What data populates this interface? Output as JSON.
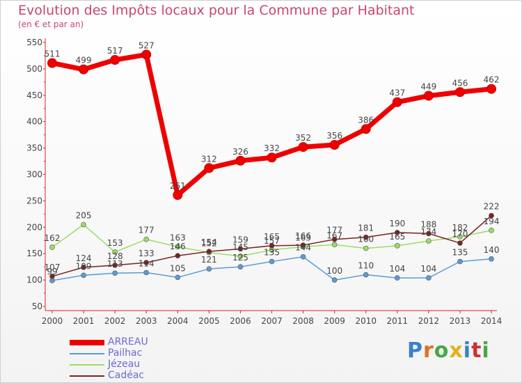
{
  "header": {
    "title": "Evolution des Impôts locaux pour la Commune par Habitant",
    "subtitle": "(en € et par an)"
  },
  "logo": {
    "text": "Proxiti"
  },
  "chart_data": {
    "type": "line",
    "title": "Evolution des Impôts locaux pour la Commune par Habitant",
    "subtitle": "(en € et par an)",
    "categories": [
      "2000",
      "2001",
      "2002",
      "2003",
      "2004",
      "2005",
      "2006",
      "2007",
      "2008",
      "2009",
      "2010",
      "2011",
      "2012",
      "2013",
      "2014"
    ],
    "ylim": [
      50,
      550
    ],
    "yticks": [
      50,
      100,
      150,
      200,
      250,
      300,
      350,
      400,
      450,
      500,
      550
    ],
    "legend_position": "bottom-left",
    "series": [
      {
        "name": "ARREAU",
        "color": "#ee0000",
        "values": [
          511,
          499,
          517,
          527,
          261,
          312,
          326,
          332,
          352,
          356,
          386,
          437,
          449,
          456,
          462
        ],
        "labels": [
          "511",
          "499",
          "517",
          "527",
          "261",
          "312",
          "326",
          "332",
          "352",
          "356",
          "386",
          "437",
          "449",
          "456",
          "462"
        ]
      },
      {
        "name": "Pailhac",
        "color": "#5b9bd5",
        "values": [
          99,
          109,
          113,
          114,
          105,
          121,
          125,
          135,
          144,
          100,
          110,
          104,
          104,
          135,
          140
        ],
        "labels": [
          "99",
          "109",
          "113",
          "114",
          "105",
          "121",
          "125",
          "135",
          "144",
          "100",
          "110",
          "104",
          "104",
          "135",
          "140"
        ]
      },
      {
        "name": "Jézeau",
        "color": "#99dd66",
        "values": [
          162,
          205,
          153,
          177,
          163,
          152,
          145,
          157,
          163,
          167,
          160,
          165,
          174,
          182,
          194
        ],
        "labels": [
          "162",
          "205",
          "153",
          "177",
          "163",
          "152",
          "145",
          "157",
          "163",
          "167",
          "160",
          "165",
          "174",
          "182",
          "194"
        ]
      },
      {
        "name": "Cadéac",
        "color": "#7a2222",
        "values": [
          107,
          124,
          128,
          133,
          146,
          154,
          159,
          165,
          166,
          177,
          181,
          190,
          188,
          170,
          222
        ],
        "labels": [
          "107",
          "124",
          "128",
          "133",
          "146",
          "154",
          "159",
          "165",
          "166",
          "177",
          "181",
          "190",
          "188",
          "170",
          "222"
        ]
      }
    ]
  }
}
